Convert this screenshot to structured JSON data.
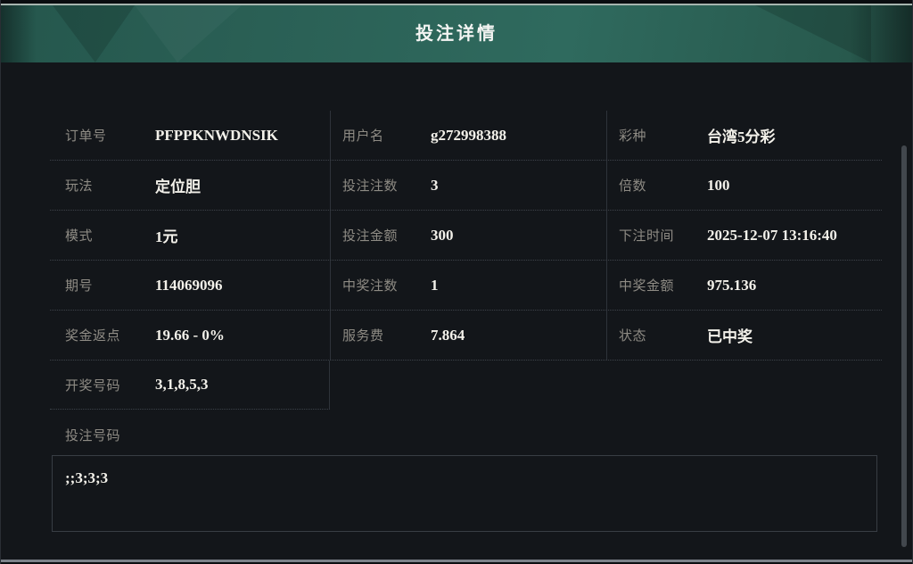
{
  "header": {
    "title": "投注详情"
  },
  "colors": {
    "header_teal": "#2c6358",
    "background": "#13161a",
    "label_text": "#8e8b84",
    "value_text": "#f3f1ea"
  },
  "table": {
    "rows": [
      {
        "cells": [
          {
            "label": "订单号",
            "value": "PFPPKNWDNSIK"
          },
          {
            "label": "用户名",
            "value": "g272998388"
          },
          {
            "label": "彩种",
            "value": "台湾5分彩"
          }
        ]
      },
      {
        "cells": [
          {
            "label": "玩法",
            "value": "定位胆"
          },
          {
            "label": "投注注数",
            "value": "3"
          },
          {
            "label": "倍数",
            "value": "100"
          }
        ]
      },
      {
        "cells": [
          {
            "label": "模式",
            "value": "1元"
          },
          {
            "label": "投注金额",
            "value": "300"
          },
          {
            "label": "下注时间",
            "value": "2025-12-07 13:16:40"
          }
        ]
      },
      {
        "cells": [
          {
            "label": "期号",
            "value": "114069096"
          },
          {
            "label": "中奖注数",
            "value": "1"
          },
          {
            "label": "中奖金额",
            "value": "975.136"
          }
        ]
      },
      {
        "cells": [
          {
            "label": "奖金返点",
            "value": "19.66 - 0%"
          },
          {
            "label": "服务费",
            "value": "7.864"
          },
          {
            "label": "状态",
            "value": "已中奖"
          }
        ]
      },
      {
        "cells": [
          {
            "label": "开奖号码",
            "value": "3,1,8,5,3"
          }
        ]
      }
    ]
  },
  "bet_numbers": {
    "label": "投注号码",
    "content": ";;3;3;3"
  }
}
